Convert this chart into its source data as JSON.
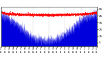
{
  "bg_color": "#ffffff",
  "fill_color": "#0000dd",
  "line_color": "#ff0000",
  "grid_color": "#999999",
  "ylim": [
    0,
    58
  ],
  "ytick_values": [
    5,
    15,
    25,
    35,
    45,
    55
  ],
  "n_minutes": 1440,
  "figsize": [
    1.6,
    0.87
  ],
  "dpi": 100
}
